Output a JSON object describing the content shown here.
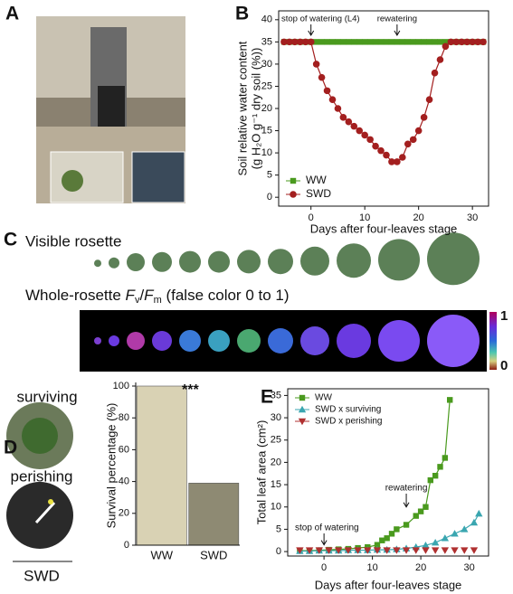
{
  "panels": {
    "labels": [
      "A",
      "B",
      "C",
      "D",
      "E"
    ]
  },
  "panel_c": {
    "visible_title": "Visible rosette",
    "fvfm_title": [
      "Whole-rosette ",
      "F",
      "v",
      "/",
      "F",
      "m",
      " (false color 0 to 1)"
    ],
    "colorbar_labels": [
      "1",
      "0"
    ]
  },
  "panel_d_photos": {
    "labels": [
      "surviving",
      "perishing"
    ],
    "group": "SWD"
  },
  "chart_data": [
    {
      "type": "line",
      "x_label": "Days after four-leaves stage",
      "y_label": [
        "Soil relative water content",
        "(g H₂O g⁻¹ dry soil (%))"
      ],
      "xlim": [
        -6,
        33
      ],
      "ylim": [
        -2,
        42
      ],
      "xticks": [
        0,
        10,
        20,
        30
      ],
      "yticks": [
        0,
        5,
        10,
        15,
        20,
        25,
        30,
        35,
        40
      ],
      "annotations": [
        "stop of watering (L4)",
        "rewatering"
      ],
      "legend": "lower left",
      "series": [
        {
          "name": "WW",
          "color": "#4a9a1e",
          "marker": "square",
          "line": true,
          "x": [
            -5,
            -4,
            -3,
            -2,
            -1,
            0,
            1,
            2,
            3,
            4,
            5,
            6,
            7,
            8,
            9,
            10,
            11,
            12,
            13,
            14,
            15,
            16,
            17,
            18,
            19,
            20,
            21,
            22,
            23,
            24,
            25,
            26,
            27,
            28,
            29,
            30,
            31,
            32
          ],
          "values": [
            35,
            35,
            35,
            35,
            35,
            35,
            35,
            35,
            35,
            35,
            35,
            35,
            35,
            35,
            35,
            35,
            35,
            35,
            35,
            35,
            35,
            35,
            35,
            35,
            35,
            35,
            35,
            35,
            35,
            35,
            35,
            35,
            35,
            35,
            35,
            35,
            35,
            35
          ]
        },
        {
          "name": "SWD",
          "color": "#a31f1f",
          "marker": "circle",
          "line": true,
          "x": [
            -5,
            -4,
            -3,
            -2,
            -1,
            0,
            1,
            2,
            3,
            4,
            5,
            6,
            7,
            8,
            9,
            10,
            11,
            12,
            13,
            14,
            15,
            16,
            17,
            18,
            19,
            20,
            21,
            22,
            23,
            24,
            25,
            26,
            27,
            28,
            29,
            30,
            31,
            32
          ],
          "values": [
            35,
            35,
            35,
            35,
            35,
            35,
            30,
            27,
            24,
            22,
            20,
            18,
            17,
            16,
            15,
            14,
            13,
            11.5,
            10.5,
            9.5,
            8,
            8,
            9,
            12,
            13,
            15,
            18,
            22,
            28,
            31,
            34,
            35,
            35,
            35,
            35,
            35,
            35,
            35
          ]
        }
      ]
    },
    {
      "type": "bar",
      "y_label": "Survival percentage (%)",
      "categories": [
        "WW",
        "SWD"
      ],
      "values": [
        100,
        39
      ],
      "colors": [
        "#d9d2b4",
        "#8e8a73"
      ],
      "ylim": [
        0,
        100
      ],
      "yticks": [
        0,
        20,
        40,
        60,
        80,
        100
      ],
      "annotations": [
        "***"
      ]
    },
    {
      "type": "scatter",
      "x_label": "Days after four-leaves stage",
      "y_label": "Total leaf area (cm²)",
      "xlim": [
        -7.5,
        34
      ],
      "ylim": [
        -1,
        36.5
      ],
      "xticks": [
        0,
        10,
        20,
        30
      ],
      "yticks": [
        0,
        5,
        10,
        15,
        20,
        25,
        30,
        35
      ],
      "annotations": [
        "rewatering",
        "stop of watering"
      ],
      "legend": "upper left",
      "series": [
        {
          "name": "WW",
          "color": "#4a9a1e",
          "marker": "square",
          "line": true,
          "x": [
            -5,
            -3,
            -1,
            1,
            3,
            5,
            7,
            9,
            11,
            12,
            13,
            14,
            15,
            17,
            19,
            20,
            21,
            22,
            23,
            24,
            25,
            26
          ],
          "values": [
            0.2,
            0.2,
            0.3,
            0.4,
            0.5,
            0.6,
            0.8,
            1,
            1.5,
            2.5,
            3,
            4,
            5,
            6,
            8,
            9,
            10,
            16,
            17,
            19,
            21,
            34
          ]
        },
        {
          "name": "SWD x surviving",
          "color": "#3aa6b0",
          "marker": "triangle-up",
          "line": true,
          "x": [
            -5,
            -3,
            -1,
            1,
            3,
            5,
            7,
            9,
            11,
            13,
            15,
            17,
            19,
            21,
            23,
            25,
            27,
            29,
            31,
            32
          ],
          "values": [
            0.1,
            0.1,
            0.2,
            0.2,
            0.2,
            0.3,
            0.3,
            0.3,
            0.4,
            0.4,
            0.5,
            0.7,
            1,
            1.4,
            2,
            3,
            4,
            5,
            6.5,
            8.5
          ]
        },
        {
          "name": "SWD x perishing",
          "color": "#b03030",
          "marker": "triangle-down",
          "line": false,
          "x": [
            -5,
            -3,
            -1,
            1,
            3,
            5,
            7,
            9,
            11,
            13,
            15,
            17,
            19,
            21,
            23,
            25,
            27,
            29,
            31
          ],
          "values": [
            0.3,
            0.3,
            0.3,
            0.3,
            0.3,
            0.3,
            0.3,
            0.3,
            0.3,
            0.3,
            0.3,
            0.3,
            0.3,
            0.3,
            0.3,
            0.3,
            0.3,
            0.3,
            0.3
          ]
        }
      ]
    }
  ]
}
